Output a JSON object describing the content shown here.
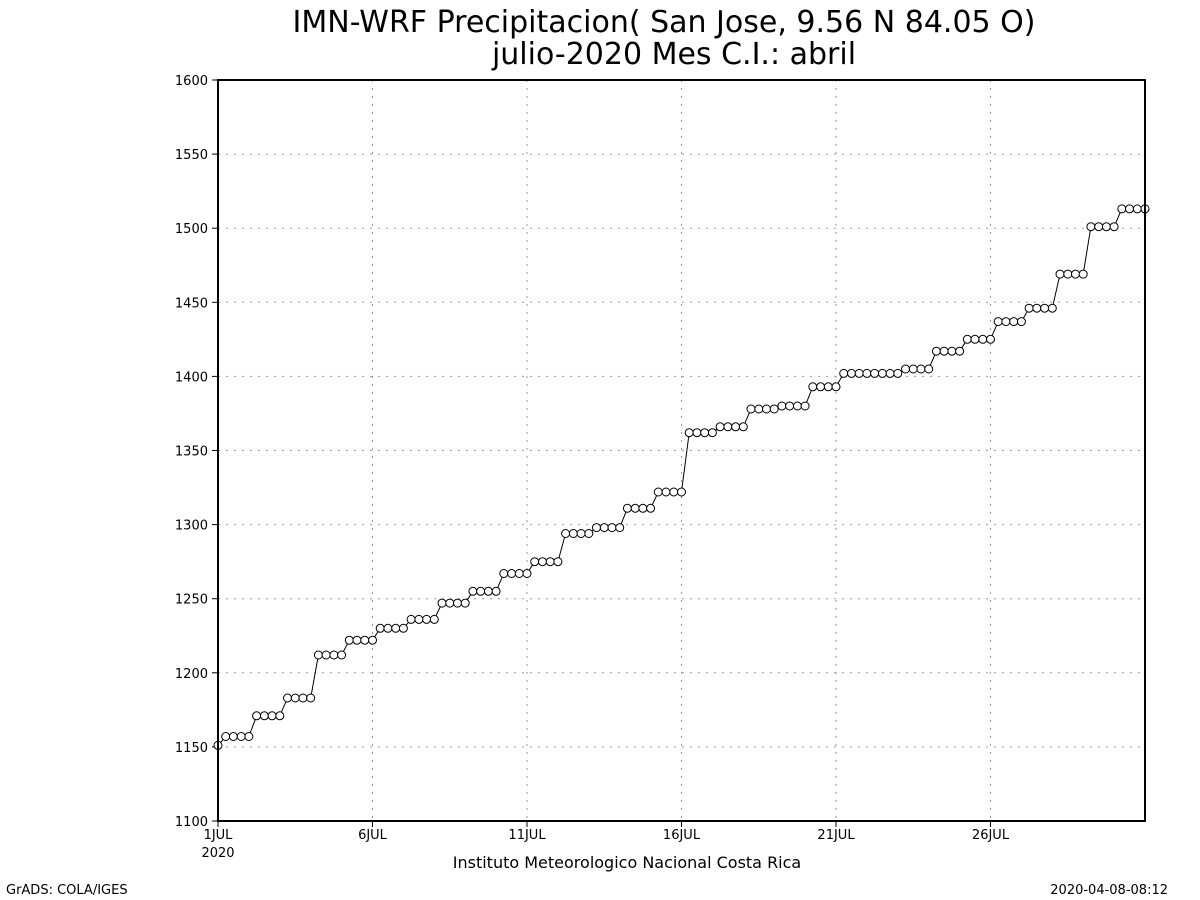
{
  "chart_data": {
    "type": "line",
    "title": "IMN-WRF  Precipitacion( San Jose, 9.56  N 84.05  O)",
    "subtitle": "julio-2020 Mes C.I.: abril",
    "xlabel": "Instituto Meteorologico Nacional Costa Rica",
    "ylabel": "",
    "ylim": [
      1100,
      1600
    ],
    "yticks": [
      1100,
      1150,
      1200,
      1250,
      1300,
      1350,
      1400,
      1450,
      1500,
      1550,
      1600
    ],
    "xlim": [
      "2020-07-01T00",
      "2020-07-31T00"
    ],
    "xticks": [
      {
        "date": "2020-07-01",
        "label": "1JUL",
        "sublabel": "2020"
      },
      {
        "date": "2020-07-06",
        "label": "6JUL",
        "sublabel": ""
      },
      {
        "date": "2020-07-11",
        "label": "11JUL",
        "sublabel": ""
      },
      {
        "date": "2020-07-16",
        "label": "16JUL",
        "sublabel": ""
      },
      {
        "date": "2020-07-21",
        "label": "21JUL",
        "sublabel": ""
      },
      {
        "date": "2020-07-26",
        "label": "26JUL",
        "sublabel": ""
      }
    ],
    "grid": true,
    "time_step_hours": 6,
    "series": [
      {
        "values": [
          1151,
          1157,
          1157,
          1157,
          1157,
          1171,
          1171,
          1171,
          1171,
          1183,
          1183,
          1183,
          1183,
          1212,
          1212,
          1212,
          1212,
          1222,
          1222,
          1222,
          1222,
          1230,
          1230,
          1230,
          1230,
          1236,
          1236,
          1236,
          1236,
          1247,
          1247,
          1247,
          1247,
          1255,
          1255,
          1255,
          1255,
          1267,
          1267,
          1267,
          1267,
          1275,
          1275,
          1275,
          1275,
          1294,
          1294,
          1294,
          1294,
          1298,
          1298,
          1298,
          1298,
          1311,
          1311,
          1311,
          1311,
          1322,
          1322,
          1322,
          1322,
          1362,
          1362,
          1362,
          1362,
          1366,
          1366,
          1366,
          1366,
          1378,
          1378,
          1378,
          1378,
          1380,
          1380,
          1380,
          1380,
          1393,
          1393,
          1393,
          1393,
          1402,
          1402,
          1402,
          1402,
          1402,
          1402,
          1402,
          1402,
          1405,
          1405,
          1405,
          1405,
          1417,
          1417,
          1417,
          1417,
          1425,
          1425,
          1425,
          1425,
          1437,
          1437,
          1437,
          1437,
          1446,
          1446,
          1446,
          1446,
          1469,
          1469,
          1469,
          1469,
          1501,
          1501,
          1501,
          1501,
          1513,
          1513,
          1513,
          1513
        ]
      }
    ]
  },
  "footer": {
    "left": "GrADS: COLA/IGES",
    "right": "2020-04-08-08:12"
  }
}
